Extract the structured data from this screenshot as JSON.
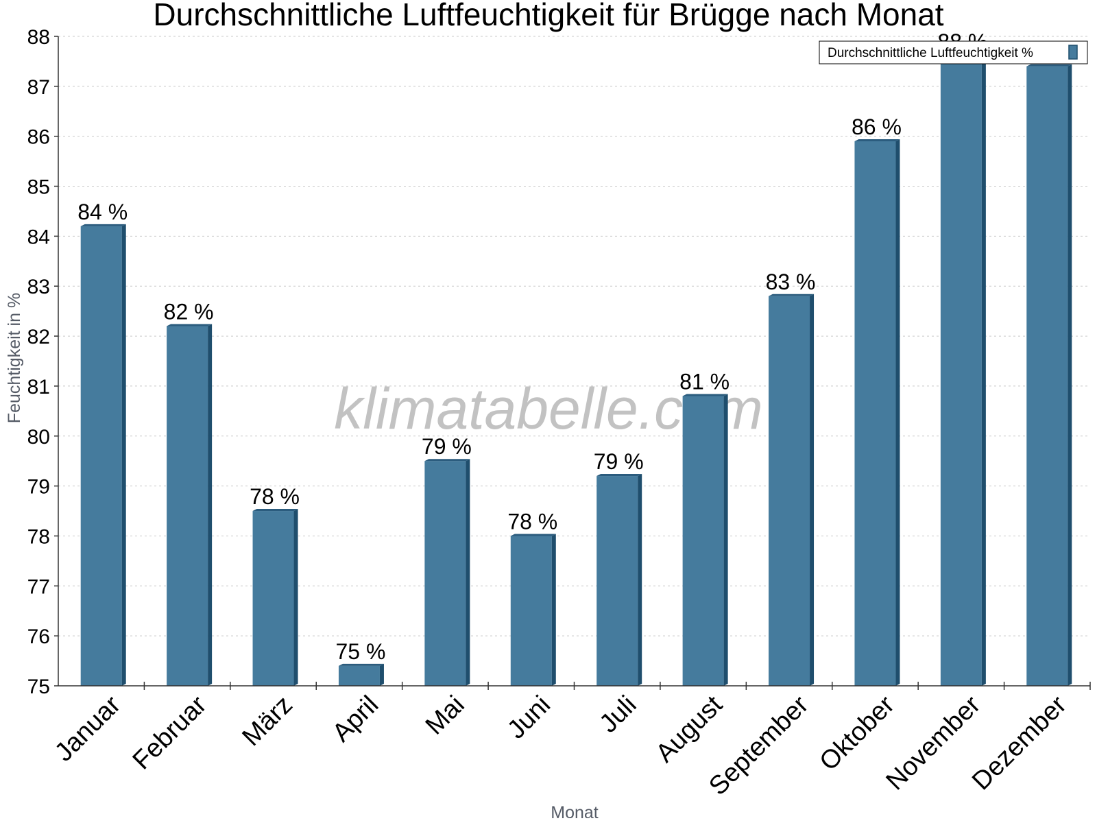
{
  "chart_data": {
    "type": "bar",
    "title": "Durchschnittliche Luftfeuchtigkeit für Brügge nach Monat",
    "xlabel": "Monat",
    "ylabel": "Feuchtigkeit in %",
    "ylim": [
      75,
      88
    ],
    "yticks": [
      "75",
      "76",
      "77",
      "78",
      "79",
      "80",
      "81",
      "82",
      "83",
      "84",
      "85",
      "86",
      "87",
      "88"
    ],
    "categories": [
      "Januar",
      "Februar",
      "März",
      "April",
      "Mai",
      "Juni",
      "Juli",
      "August",
      "September",
      "Oktober",
      "November",
      "Dezember"
    ],
    "series": [
      {
        "name": "Durchschnittliche Luftfeuchtigkeit %",
        "values": [
          84.2,
          82.2,
          78.5,
          75.4,
          79.5,
          78.0,
          79.2,
          80.8,
          82.8,
          85.9,
          87.6,
          87.4
        ],
        "labels": [
          "84 %",
          "82 %",
          "78 %",
          "75 %",
          "79 %",
          "78 %",
          "79 %",
          "81 %",
          "83 %",
          "86 %",
          "88 %",
          ""
        ]
      }
    ],
    "grid": true,
    "legend_position": "top-right",
    "colors": {
      "bar": "#457b9d",
      "bar_side": "#1f4e6d",
      "bar_top": "#2b5c7e"
    }
  },
  "watermark": "klimatabelle.com"
}
